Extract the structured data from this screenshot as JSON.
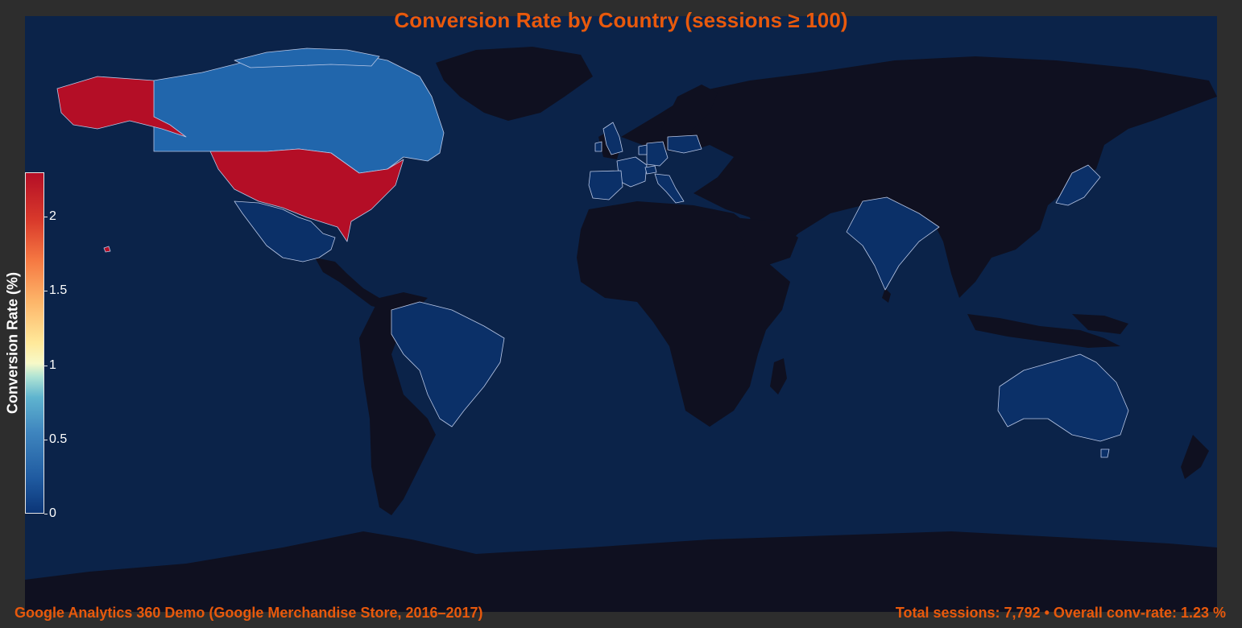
{
  "title": "Conversion Rate by Country (sessions ≥ 100)",
  "footer": {
    "source": "Google Analytics 360 Demo (Google Merchandise Store, 2016–2017)",
    "summary": "Total sessions: 7,792  •  Overall conv-rate: 1.23 %"
  },
  "colorbar": {
    "label": "Conversion Rate (%)",
    "ticks": [
      {
        "label": "0",
        "value": 0
      },
      {
        "label": "0.5",
        "value": 0.5
      },
      {
        "label": "1",
        "value": 1
      },
      {
        "label": "1.5",
        "value": 1.5
      },
      {
        "label": "2",
        "value": 2
      }
    ],
    "range": [
      0,
      2.3
    ]
  },
  "colors": {
    "ocean": "#0b2349",
    "no_data_land": "#0f1020",
    "high": "#b40e26",
    "mid_blue": "#2166ac",
    "low_blue": "#0b3068",
    "title_accent": "#e8590c",
    "border": "#b9c7e6"
  },
  "chart_data": {
    "type": "choropleth",
    "colormap": "RdYlBu_r",
    "countries": [
      {
        "name": "United States",
        "value": 2.3
      },
      {
        "name": "Canada",
        "value": 0.4
      },
      {
        "name": "Mexico",
        "value": 0.05
      },
      {
        "name": "Brazil",
        "value": 0.05
      },
      {
        "name": "United Kingdom",
        "value": 0.05
      },
      {
        "name": "France",
        "value": 0.05
      },
      {
        "name": "Spain",
        "value": 0.05
      },
      {
        "name": "Germany",
        "value": 0.05
      },
      {
        "name": "Italy",
        "value": 0.05
      },
      {
        "name": "Netherlands",
        "value": 0.05
      },
      {
        "name": "Poland",
        "value": 0.05
      },
      {
        "name": "Switzerland",
        "value": 0.05
      },
      {
        "name": "India",
        "value": 0.05
      },
      {
        "name": "Japan",
        "value": 0.05
      },
      {
        "name": "Australia",
        "value": 0.05
      }
    ]
  }
}
